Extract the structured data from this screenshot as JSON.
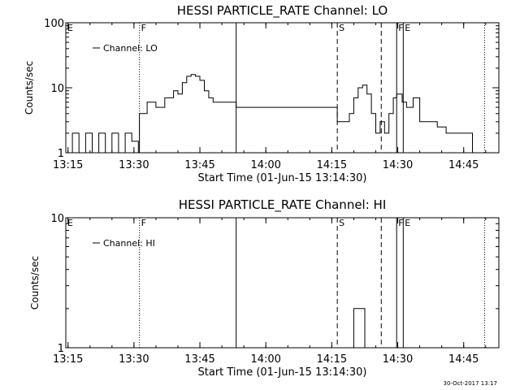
{
  "footer": {
    "timestamp": "30-Oct-2017 13:17"
  },
  "chart_data": [
    {
      "type": "line",
      "title": "HESSI PARTICLE_RATE Channel: LO",
      "xlabel": "Start Time (01-Jun-15 13:14:30)",
      "ylabel": "Counts/sec",
      "yscale": "log",
      "xlim": [
        "13:14:30",
        "14:53:00"
      ],
      "ylim": [
        1,
        100
      ],
      "xtick_labels": [
        "13:15",
        "13:30",
        "13:45",
        "14:00",
        "14:15",
        "14:30",
        "14:45"
      ],
      "ytick_labels": [
        "1",
        "10",
        "100"
      ],
      "legend": {
        "position": "top-left",
        "entries": [
          "Channel: LO"
        ]
      },
      "markers": [
        {
          "label": "E",
          "time": "13:14:30",
          "style": "none"
        },
        {
          "label": "F",
          "time": "13:31:15",
          "style": "dotted"
        },
        {
          "label": "",
          "time": "13:53:15",
          "style": "solid"
        },
        {
          "label": "S",
          "time": "14:16:15",
          "style": "dashed"
        },
        {
          "label": "",
          "time": "14:26:15",
          "style": "dashed"
        },
        {
          "label": "F",
          "time": "14:29:45",
          "style": "solid"
        },
        {
          "label": "E",
          "time": "14:31:15",
          "style": "solid"
        },
        {
          "label": "",
          "time": "14:49:45",
          "style": "dotted"
        }
      ],
      "series": [
        {
          "name": "Channel: LO",
          "x": [
            "13:14:30",
            "13:16:00",
            "13:17:30",
            "13:19:00",
            "13:20:30",
            "13:22:00",
            "13:23:30",
            "13:25:00",
            "13:26:30",
            "13:28:00",
            "13:29:30",
            "13:31:00",
            "13:31:15",
            "13:33:00",
            "13:35:00",
            "13:37:00",
            "13:39:00",
            "13:40:00",
            "13:41:00",
            "13:42:00",
            "13:43:00",
            "13:44:00",
            "13:45:00",
            "13:46:00",
            "13:47:00",
            "13:48:00",
            "13:49:00",
            "13:52:00",
            "13:53:15",
            "13:56:00",
            "13:59:00",
            "14:02:00",
            "14:05:00",
            "14:08:00",
            "14:11:00",
            "14:14:00",
            "14:16:15",
            "14:17:00",
            "14:18:00",
            "14:19:00",
            "14:20:00",
            "14:21:00",
            "14:22:00",
            "14:23:00",
            "14:24:00",
            "14:25:00",
            "14:26:00",
            "14:27:00",
            "14:28:00",
            "14:29:00",
            "14:29:45",
            "14:31:00",
            "14:32:00",
            "14:33:30",
            "14:35:00",
            "14:37:00",
            "14:39:00",
            "14:41:00",
            "14:43:00",
            "14:45:00",
            "14:47:00",
            "14:48:00",
            "14:49:00",
            "14:49:45",
            "14:50:30"
          ],
          "values": [
            1,
            2,
            1,
            2,
            1,
            2,
            1,
            2,
            1,
            2,
            1.5,
            1,
            4,
            6,
            5,
            7,
            9,
            8,
            12,
            15,
            16,
            15,
            13,
            9,
            7,
            6,
            6,
            6,
            5,
            5,
            5,
            5,
            5,
            5,
            5,
            5,
            3,
            3,
            3,
            4,
            7,
            10,
            11,
            8,
            4,
            2,
            3,
            2,
            4,
            7,
            8,
            6,
            5,
            7,
            3,
            3,
            2.5,
            2,
            2,
            2,
            1,
            1,
            1,
            1,
            1
          ]
        }
      ]
    },
    {
      "type": "line",
      "title": "HESSI PARTICLE_RATE Channel: HI",
      "xlabel": "Start Time (01-Jun-15 13:14:30)",
      "ylabel": "Counts/sec",
      "yscale": "log",
      "xlim": [
        "13:14:30",
        "14:53:00"
      ],
      "ylim": [
        1,
        10
      ],
      "xtick_labels": [
        "13:15",
        "13:30",
        "13:45",
        "14:00",
        "14:15",
        "14:30",
        "14:45"
      ],
      "ytick_labels": [
        "1",
        "10"
      ],
      "legend": {
        "position": "top-left",
        "entries": [
          "Channel: HI"
        ]
      },
      "markers": [
        {
          "label": "E",
          "time": "13:14:30",
          "style": "none"
        },
        {
          "label": "F",
          "time": "13:31:15",
          "style": "dotted"
        },
        {
          "label": "",
          "time": "13:53:15",
          "style": "solid"
        },
        {
          "label": "S",
          "time": "14:16:15",
          "style": "dashed"
        },
        {
          "label": "",
          "time": "14:26:15",
          "style": "dashed"
        },
        {
          "label": "F",
          "time": "14:29:45",
          "style": "solid"
        },
        {
          "label": "E",
          "time": "14:31:15",
          "style": "solid"
        },
        {
          "label": "",
          "time": "14:49:45",
          "style": "dotted"
        }
      ],
      "series": [
        {
          "name": "Channel: HI",
          "x": [
            "14:14:30",
            "14:18:00",
            "14:19:00",
            "14:20:00",
            "14:21:30",
            "14:22:30",
            "14:23:00"
          ],
          "values": [
            1,
            1,
            1,
            2,
            2,
            1,
            1
          ]
        }
      ]
    }
  ]
}
